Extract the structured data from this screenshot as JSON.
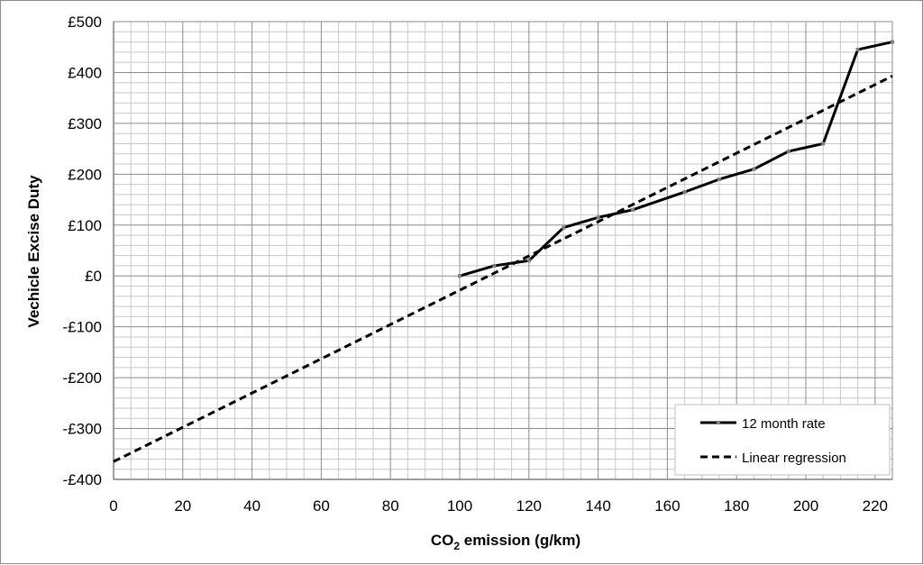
{
  "chart_data": {
    "type": "line",
    "xlabel": {
      "main": "CO",
      "sub": "2",
      "rest": " emission (g/km)"
    },
    "ylabel": "Vechicle Excise Duty",
    "xlim": [
      0,
      225
    ],
    "ylim": [
      -400,
      500
    ],
    "x_ticks": [
      0,
      20,
      40,
      60,
      80,
      100,
      120,
      140,
      160,
      180,
      200,
      220
    ],
    "y_ticks": [
      -400,
      -300,
      -200,
      -100,
      0,
      100,
      200,
      300,
      400,
      500
    ],
    "y_tick_labels": [
      "-£400",
      "-£300",
      "-£200",
      "-£100",
      "£0",
      "£100",
      "£200",
      "£300",
      "£400",
      "£500"
    ],
    "grid": {
      "major": true,
      "minor": true,
      "x_minor_step": 5,
      "y_minor_step": 20
    },
    "legend_position": "bottom-right",
    "series": [
      {
        "name": "12 month rate",
        "style": "solid",
        "color": "#000000",
        "marker_color": "#7f7f7f",
        "x": [
          100,
          110,
          120,
          130,
          140,
          150,
          165,
          175,
          185,
          195,
          205,
          215,
          225
        ],
        "y": [
          0,
          20,
          30,
          95,
          115,
          130,
          165,
          190,
          210,
          245,
          260,
          445,
          460
        ]
      },
      {
        "name": "Linear regression",
        "style": "dashed",
        "color": "#000000",
        "x": [
          0,
          225
        ],
        "y": [
          -365,
          393
        ]
      }
    ]
  }
}
